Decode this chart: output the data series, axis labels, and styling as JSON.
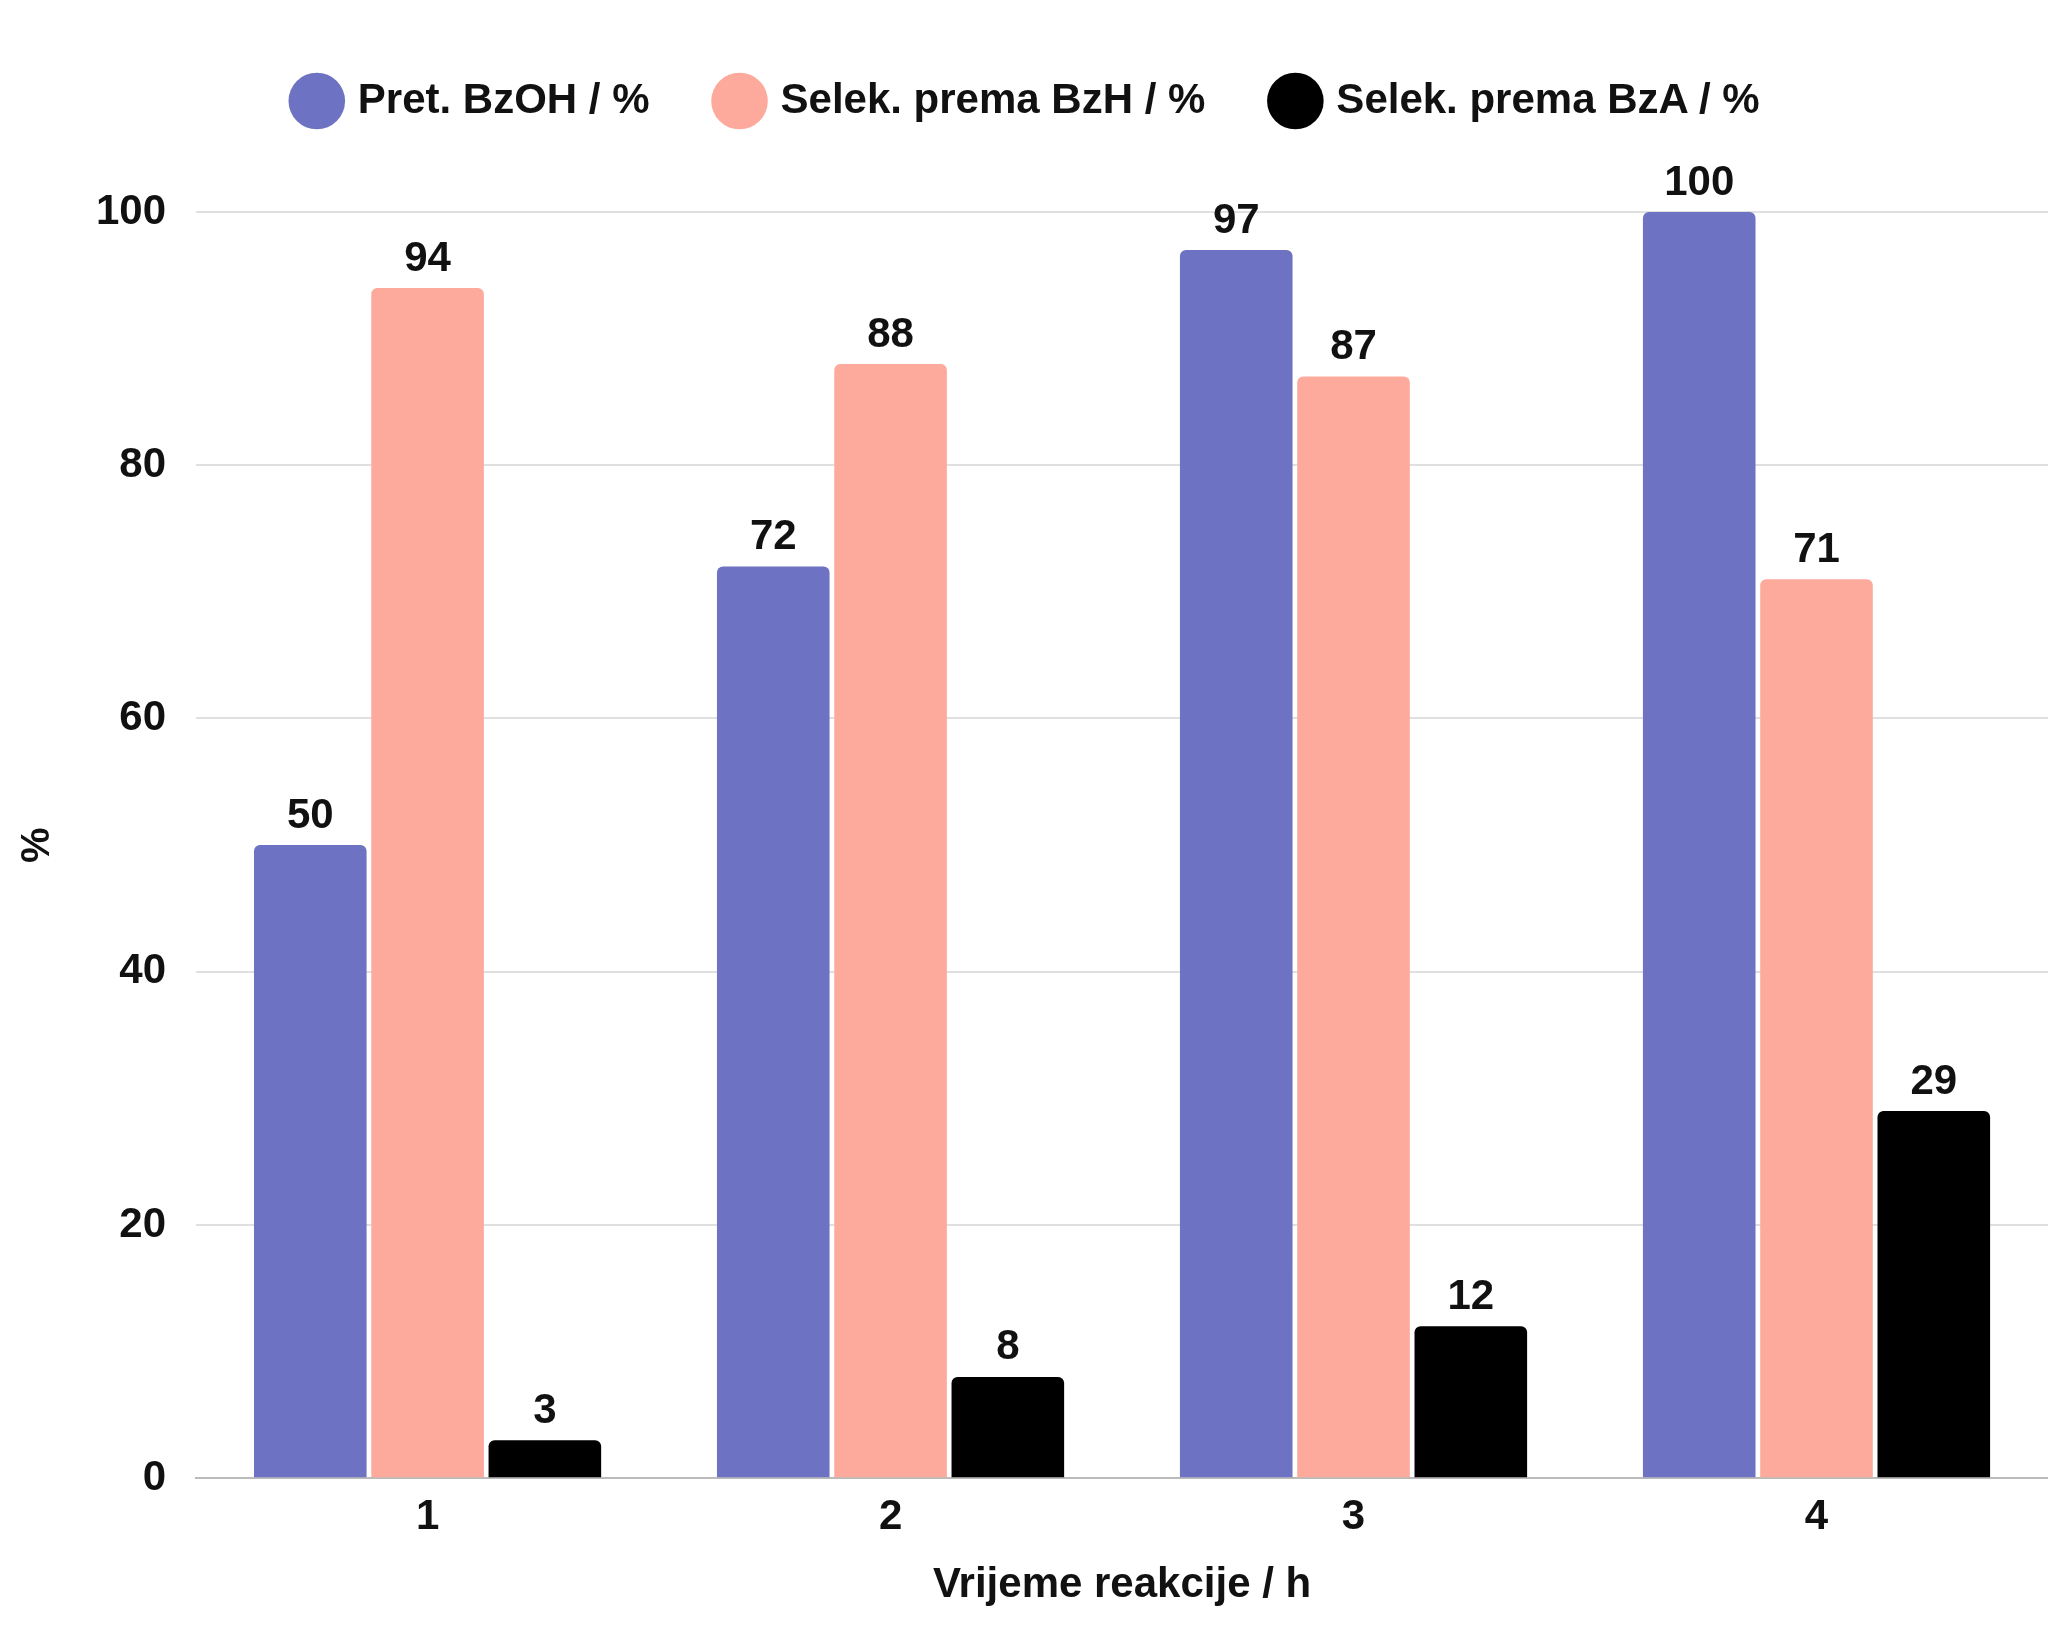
{
  "chart_data": {
    "type": "bar",
    "xlabel": "Vrijeme reakcije / h",
    "ylabel": "%",
    "categories": [
      "1",
      "2",
      "3",
      "4"
    ],
    "series": [
      {
        "name": "Pret. BzOH / %",
        "color": "#6d73c2",
        "values": [
          50,
          72,
          97,
          100
        ]
      },
      {
        "name": "Selek. prema BzH / %",
        "color": "#fda99b",
        "values": [
          94,
          88,
          87,
          71
        ]
      },
      {
        "name": "Selek. prema BzA / %",
        "color": "#000000",
        "values": [
          3,
          8,
          12,
          29
        ]
      }
    ],
    "ylim": [
      0,
      100
    ],
    "yticks": [
      0,
      20,
      40,
      60,
      80,
      100
    ],
    "grid": "y",
    "legend": "top",
    "data_labels": true
  }
}
